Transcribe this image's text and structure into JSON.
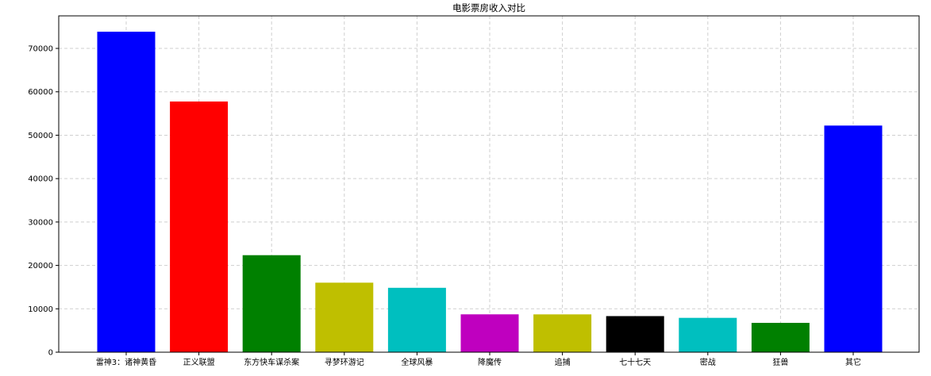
{
  "chart_data": {
    "type": "bar",
    "title": "电影票房收入对比",
    "xlabel": "",
    "ylabel": "",
    "categories": [
      "雷神3：诸神黄昏",
      "正义联盟",
      "东方快车谋杀案",
      "寻梦环游记",
      "全球风暴",
      "降魔传",
      "追捕",
      "七十七天",
      "密战",
      "狂兽",
      "其它"
    ],
    "values": [
      73853,
      57767,
      22354,
      16022,
      14839,
      8725,
      8716,
      8318,
      7916,
      6764,
      52222
    ],
    "bar_colors": [
      "#0000ff",
      "#ff0000",
      "#008000",
      "#bfbf00",
      "#00bfbf",
      "#bf00bf",
      "#bfbf00",
      "#000000",
      "#00bfbf",
      "#008000",
      "#0000ff"
    ],
    "ylim": [
      0,
      77500
    ],
    "yticks": [
      0,
      10000,
      20000,
      30000,
      40000,
      50000,
      60000,
      70000
    ],
    "grid": true,
    "legend": "none"
  }
}
